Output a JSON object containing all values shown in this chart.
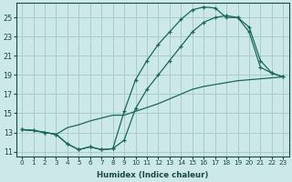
{
  "xlabel": "Humidex (Indice chaleur)",
  "bg_color": "#cce8e8",
  "grid_color": "#a8cccc",
  "line_color": "#1a6858",
  "xlim": [
    -0.5,
    23.5
  ],
  "ylim": [
    10.5,
    26.5
  ],
  "xticks": [
    0,
    1,
    2,
    3,
    4,
    5,
    6,
    7,
    8,
    9,
    10,
    11,
    12,
    13,
    14,
    15,
    16,
    17,
    18,
    19,
    20,
    21,
    22,
    23
  ],
  "yticks": [
    11,
    13,
    15,
    17,
    19,
    21,
    23,
    25
  ],
  "line1_x": [
    0,
    1,
    2,
    3,
    4,
    5,
    6,
    7,
    8,
    9,
    10,
    11,
    12,
    13,
    14,
    15,
    16,
    17,
    18,
    19,
    20,
    21,
    22,
    23
  ],
  "line1_y": [
    13.3,
    13.2,
    13.0,
    12.8,
    11.8,
    11.2,
    11.5,
    11.2,
    11.3,
    15.2,
    18.5,
    20.5,
    22.2,
    23.5,
    24.8,
    25.8,
    26.1,
    26.0,
    25.0,
    25.0,
    23.5,
    19.8,
    19.2,
    18.8
  ],
  "line2_x": [
    0,
    1,
    2,
    3,
    4,
    5,
    6,
    7,
    8,
    9,
    10,
    11,
    12,
    13,
    14,
    15,
    16,
    17,
    18,
    19,
    20,
    21,
    22,
    23
  ],
  "line2_y": [
    13.3,
    13.2,
    13.0,
    12.8,
    11.8,
    11.2,
    11.5,
    11.2,
    11.3,
    12.2,
    15.5,
    17.5,
    19.0,
    20.5,
    22.0,
    23.5,
    24.5,
    25.0,
    25.2,
    25.0,
    24.0,
    20.5,
    19.2,
    18.8
  ],
  "line3_x": [
    0,
    1,
    2,
    3,
    4,
    5,
    6,
    7,
    8,
    9,
    10,
    11,
    12,
    13,
    14,
    15,
    16,
    17,
    18,
    19,
    20,
    21,
    22,
    23
  ],
  "line3_y": [
    13.3,
    13.2,
    13.0,
    12.8,
    13.5,
    13.8,
    14.2,
    14.5,
    14.8,
    14.8,
    15.2,
    15.6,
    16.0,
    16.5,
    17.0,
    17.5,
    17.8,
    18.0,
    18.2,
    18.4,
    18.5,
    18.6,
    18.7,
    18.8
  ]
}
